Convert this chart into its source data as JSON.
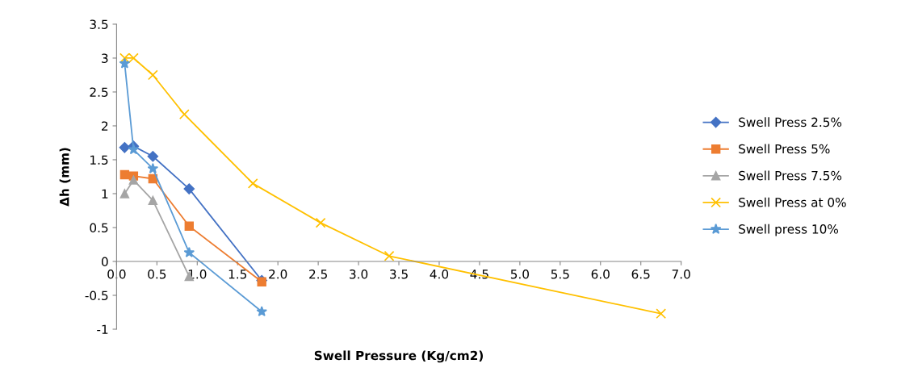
{
  "chart_data": {
    "type": "line",
    "xlabel": "Swell Pressure (Kg/cm2)",
    "ylabel": "Δh (mm)",
    "xlim": [
      0,
      7
    ],
    "xticks": [
      {
        "value": 0,
        "label": "0.0"
      },
      {
        "value": 0.5,
        "label": "0.5"
      },
      {
        "value": 1,
        "label": "1.0"
      },
      {
        "value": 1.5,
        "label": "1.5"
      },
      {
        "value": 2,
        "label": "2.0"
      },
      {
        "value": 2.5,
        "label": "2.5"
      },
      {
        "value": 3,
        "label": "3.0"
      },
      {
        "value": 3.5,
        "label": "3.5"
      },
      {
        "value": 4,
        "label": "4.0"
      },
      {
        "value": 4.5,
        "label": "4.5"
      },
      {
        "value": 5,
        "label": "5.0"
      },
      {
        "value": 5.5,
        "label": "5.5"
      },
      {
        "value": 6,
        "label": "6.0"
      },
      {
        "value": 6.5,
        "label": "6.5"
      },
      {
        "value": 7,
        "label": "7.0"
      }
    ],
    "ylim": [
      -1,
      3.5
    ],
    "yticks": [
      -1,
      -0.5,
      0,
      0.5,
      1,
      1.5,
      2,
      2.5,
      3,
      3.5
    ],
    "grid": false,
    "legend": "right",
    "series": [
      {
        "name": "Swell Press 2.5%",
        "color": "#4472c4",
        "marker": "diamond",
        "x": [
          0.1,
          0.21,
          0.45,
          0.9,
          1.8
        ],
        "values": [
          1.68,
          1.7,
          1.55,
          1.07,
          -0.28
        ]
      },
      {
        "name": "Swell Press 5%",
        "color": "#ed7d31",
        "marker": "square",
        "x": [
          0.1,
          0.21,
          0.45,
          0.9,
          1.8
        ],
        "values": [
          1.28,
          1.26,
          1.22,
          0.52,
          -0.3
        ]
      },
      {
        "name": "Swell Press 7.5%",
        "color": "#a5a5a5",
        "marker": "triangle",
        "x": [
          0.1,
          0.21,
          0.45,
          0.9
        ],
        "values": [
          1.0,
          1.2,
          0.9,
          -0.22
        ]
      },
      {
        "name": "Swell Press at 0%",
        "color": "#ffc000",
        "marker": "cross",
        "x": [
          0.1,
          0.21,
          0.45,
          0.84,
          1.69,
          2.53,
          3.38,
          6.75
        ],
        "values": [
          3.0,
          3.0,
          2.75,
          2.17,
          1.15,
          0.57,
          0.08,
          -0.77
        ]
      },
      {
        "name": "Swell press 10%",
        "color": "#5b9bd5",
        "marker": "star",
        "x": [
          0.1,
          0.21,
          0.45,
          0.9,
          1.8
        ],
        "values": [
          2.92,
          1.65,
          1.37,
          0.13,
          -0.74
        ]
      }
    ]
  }
}
